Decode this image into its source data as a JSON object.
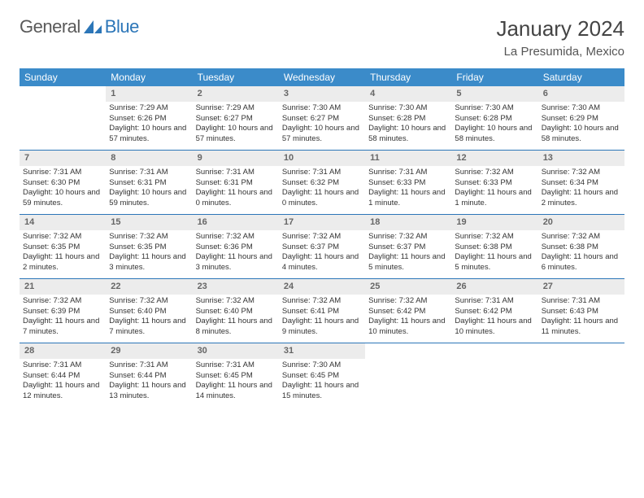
{
  "logo": {
    "textGeneral": "General",
    "textBlue": "Blue"
  },
  "title": "January 2024",
  "location": "La Presumida, Mexico",
  "colors": {
    "headerBg": "#3b8bc9",
    "headerText": "#ffffff",
    "dayNumBg": "#ececec",
    "dayNumText": "#666666",
    "rowBorder": "#2c76b8",
    "bodyText": "#333333"
  },
  "weekdays": [
    "Sunday",
    "Monday",
    "Tuesday",
    "Wednesday",
    "Thursday",
    "Friday",
    "Saturday"
  ],
  "weeks": [
    [
      {
        "n": "",
        "sr": "",
        "ss": "",
        "dl": ""
      },
      {
        "n": "1",
        "sr": "Sunrise: 7:29 AM",
        "ss": "Sunset: 6:26 PM",
        "dl": "Daylight: 10 hours and 57 minutes."
      },
      {
        "n": "2",
        "sr": "Sunrise: 7:29 AM",
        "ss": "Sunset: 6:27 PM",
        "dl": "Daylight: 10 hours and 57 minutes."
      },
      {
        "n": "3",
        "sr": "Sunrise: 7:30 AM",
        "ss": "Sunset: 6:27 PM",
        "dl": "Daylight: 10 hours and 57 minutes."
      },
      {
        "n": "4",
        "sr": "Sunrise: 7:30 AM",
        "ss": "Sunset: 6:28 PM",
        "dl": "Daylight: 10 hours and 58 minutes."
      },
      {
        "n": "5",
        "sr": "Sunrise: 7:30 AM",
        "ss": "Sunset: 6:28 PM",
        "dl": "Daylight: 10 hours and 58 minutes."
      },
      {
        "n": "6",
        "sr": "Sunrise: 7:30 AM",
        "ss": "Sunset: 6:29 PM",
        "dl": "Daylight: 10 hours and 58 minutes."
      }
    ],
    [
      {
        "n": "7",
        "sr": "Sunrise: 7:31 AM",
        "ss": "Sunset: 6:30 PM",
        "dl": "Daylight: 10 hours and 59 minutes."
      },
      {
        "n": "8",
        "sr": "Sunrise: 7:31 AM",
        "ss": "Sunset: 6:31 PM",
        "dl": "Daylight: 10 hours and 59 minutes."
      },
      {
        "n": "9",
        "sr": "Sunrise: 7:31 AM",
        "ss": "Sunset: 6:31 PM",
        "dl": "Daylight: 11 hours and 0 minutes."
      },
      {
        "n": "10",
        "sr": "Sunrise: 7:31 AM",
        "ss": "Sunset: 6:32 PM",
        "dl": "Daylight: 11 hours and 0 minutes."
      },
      {
        "n": "11",
        "sr": "Sunrise: 7:31 AM",
        "ss": "Sunset: 6:33 PM",
        "dl": "Daylight: 11 hours and 1 minute."
      },
      {
        "n": "12",
        "sr": "Sunrise: 7:32 AM",
        "ss": "Sunset: 6:33 PM",
        "dl": "Daylight: 11 hours and 1 minute."
      },
      {
        "n": "13",
        "sr": "Sunrise: 7:32 AM",
        "ss": "Sunset: 6:34 PM",
        "dl": "Daylight: 11 hours and 2 minutes."
      }
    ],
    [
      {
        "n": "14",
        "sr": "Sunrise: 7:32 AM",
        "ss": "Sunset: 6:35 PM",
        "dl": "Daylight: 11 hours and 2 minutes."
      },
      {
        "n": "15",
        "sr": "Sunrise: 7:32 AM",
        "ss": "Sunset: 6:35 PM",
        "dl": "Daylight: 11 hours and 3 minutes."
      },
      {
        "n": "16",
        "sr": "Sunrise: 7:32 AM",
        "ss": "Sunset: 6:36 PM",
        "dl": "Daylight: 11 hours and 3 minutes."
      },
      {
        "n": "17",
        "sr": "Sunrise: 7:32 AM",
        "ss": "Sunset: 6:37 PM",
        "dl": "Daylight: 11 hours and 4 minutes."
      },
      {
        "n": "18",
        "sr": "Sunrise: 7:32 AM",
        "ss": "Sunset: 6:37 PM",
        "dl": "Daylight: 11 hours and 5 minutes."
      },
      {
        "n": "19",
        "sr": "Sunrise: 7:32 AM",
        "ss": "Sunset: 6:38 PM",
        "dl": "Daylight: 11 hours and 5 minutes."
      },
      {
        "n": "20",
        "sr": "Sunrise: 7:32 AM",
        "ss": "Sunset: 6:38 PM",
        "dl": "Daylight: 11 hours and 6 minutes."
      }
    ],
    [
      {
        "n": "21",
        "sr": "Sunrise: 7:32 AM",
        "ss": "Sunset: 6:39 PM",
        "dl": "Daylight: 11 hours and 7 minutes."
      },
      {
        "n": "22",
        "sr": "Sunrise: 7:32 AM",
        "ss": "Sunset: 6:40 PM",
        "dl": "Daylight: 11 hours and 7 minutes."
      },
      {
        "n": "23",
        "sr": "Sunrise: 7:32 AM",
        "ss": "Sunset: 6:40 PM",
        "dl": "Daylight: 11 hours and 8 minutes."
      },
      {
        "n": "24",
        "sr": "Sunrise: 7:32 AM",
        "ss": "Sunset: 6:41 PM",
        "dl": "Daylight: 11 hours and 9 minutes."
      },
      {
        "n": "25",
        "sr": "Sunrise: 7:32 AM",
        "ss": "Sunset: 6:42 PM",
        "dl": "Daylight: 11 hours and 10 minutes."
      },
      {
        "n": "26",
        "sr": "Sunrise: 7:31 AM",
        "ss": "Sunset: 6:42 PM",
        "dl": "Daylight: 11 hours and 10 minutes."
      },
      {
        "n": "27",
        "sr": "Sunrise: 7:31 AM",
        "ss": "Sunset: 6:43 PM",
        "dl": "Daylight: 11 hours and 11 minutes."
      }
    ],
    [
      {
        "n": "28",
        "sr": "Sunrise: 7:31 AM",
        "ss": "Sunset: 6:44 PM",
        "dl": "Daylight: 11 hours and 12 minutes."
      },
      {
        "n": "29",
        "sr": "Sunrise: 7:31 AM",
        "ss": "Sunset: 6:44 PM",
        "dl": "Daylight: 11 hours and 13 minutes."
      },
      {
        "n": "30",
        "sr": "Sunrise: 7:31 AM",
        "ss": "Sunset: 6:45 PM",
        "dl": "Daylight: 11 hours and 14 minutes."
      },
      {
        "n": "31",
        "sr": "Sunrise: 7:30 AM",
        "ss": "Sunset: 6:45 PM",
        "dl": "Daylight: 11 hours and 15 minutes."
      },
      {
        "n": "",
        "sr": "",
        "ss": "",
        "dl": ""
      },
      {
        "n": "",
        "sr": "",
        "ss": "",
        "dl": ""
      },
      {
        "n": "",
        "sr": "",
        "ss": "",
        "dl": ""
      }
    ]
  ]
}
